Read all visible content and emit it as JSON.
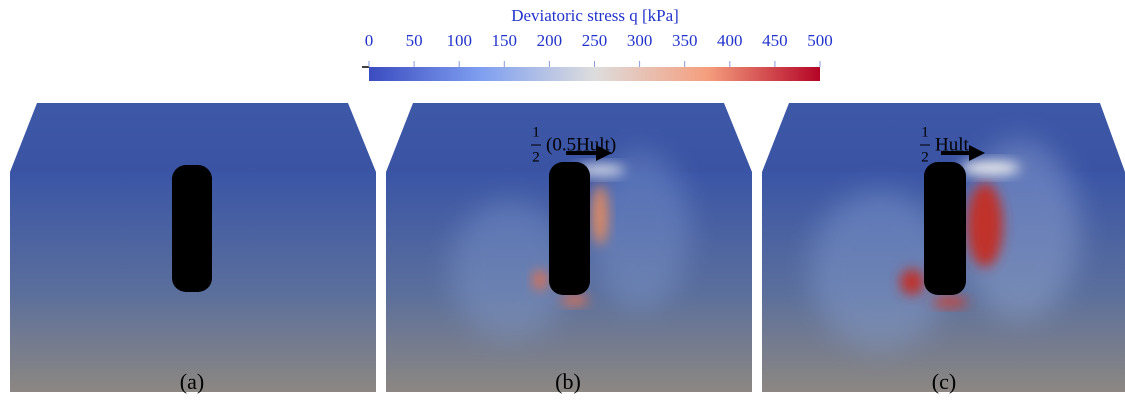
{
  "colorbar": {
    "title": "Deviatoric stress q [kPa]",
    "range": [
      0,
      500
    ],
    "ticks": [
      0,
      50,
      100,
      150,
      200,
      250,
      300,
      350,
      400,
      450,
      500
    ],
    "colors": [
      "#3b4cc0",
      "#7f9ff0",
      "#dddddd",
      "#f59e7e",
      "#b40426"
    ]
  },
  "panels": [
    {
      "label": "(a)"
    },
    {
      "label": "(b)",
      "load_numerator": "1",
      "load_denominator": "2",
      "load_text": "(0.5Hult)"
    },
    {
      "label": "(c)",
      "load_numerator": "1",
      "load_denominator": "2",
      "load_text": "Hult"
    }
  ]
}
